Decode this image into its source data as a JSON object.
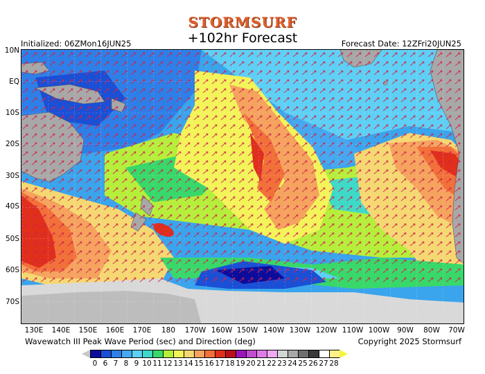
{
  "header": {
    "brand": "STORMSURF",
    "title": "+102hr Forecast",
    "initialized": "Initialized: 06ZMon16JUN25",
    "forecast_date": "Forecast Date: 12ZFri20JUN25"
  },
  "axes": {
    "lat_labels": [
      "10N",
      "EQ",
      "10S",
      "20S",
      "30S",
      "40S",
      "50S",
      "60S",
      "70S"
    ],
    "lon_labels": [
      "130E",
      "140E",
      "150E",
      "160E",
      "170E",
      "180",
      "170W",
      "160W",
      "150W",
      "140W",
      "130W",
      "120W",
      "110W",
      "100W",
      "90W",
      "80W",
      "70W"
    ]
  },
  "footer": {
    "caption": "Wavewatch III Peak Wave Period (sec) and Direction (deg)",
    "copyright": "Copyright 2025 Stormsurf"
  },
  "legend": {
    "values": [
      "0",
      "6",
      "7",
      "8",
      "9",
      "10",
      "11",
      "12",
      "13",
      "14",
      "15",
      "16",
      "17",
      "18",
      "19",
      "20",
      "21",
      "22",
      "23",
      "24",
      "25",
      "26",
      "27",
      "28"
    ],
    "colors": [
      "#0c0c9c",
      "#1a4fd6",
      "#2f7fe8",
      "#46a8f0",
      "#5ed0f5",
      "#3fd9c8",
      "#38d86a",
      "#b6ee3c",
      "#f3f35a",
      "#f5d872",
      "#f5a35e",
      "#f2703a",
      "#e0301c",
      "#b8101c",
      "#9a16b8",
      "#c04cd0",
      "#e07ce8",
      "#f0a8f2",
      "#d4d4d4",
      "#a8a8a8",
      "#6e6e6e",
      "#3a3a3a",
      "#ffffff",
      "#fff08a"
    ],
    "left_arrow_color": "#c8c8c8",
    "right_arrow_color": "#f5f53c"
  },
  "colors": {
    "ocean_blue": "#3aa4ec",
    "land": "#a8a8a8",
    "ice": "#d9d9d9",
    "arrow": "#d0224a"
  }
}
